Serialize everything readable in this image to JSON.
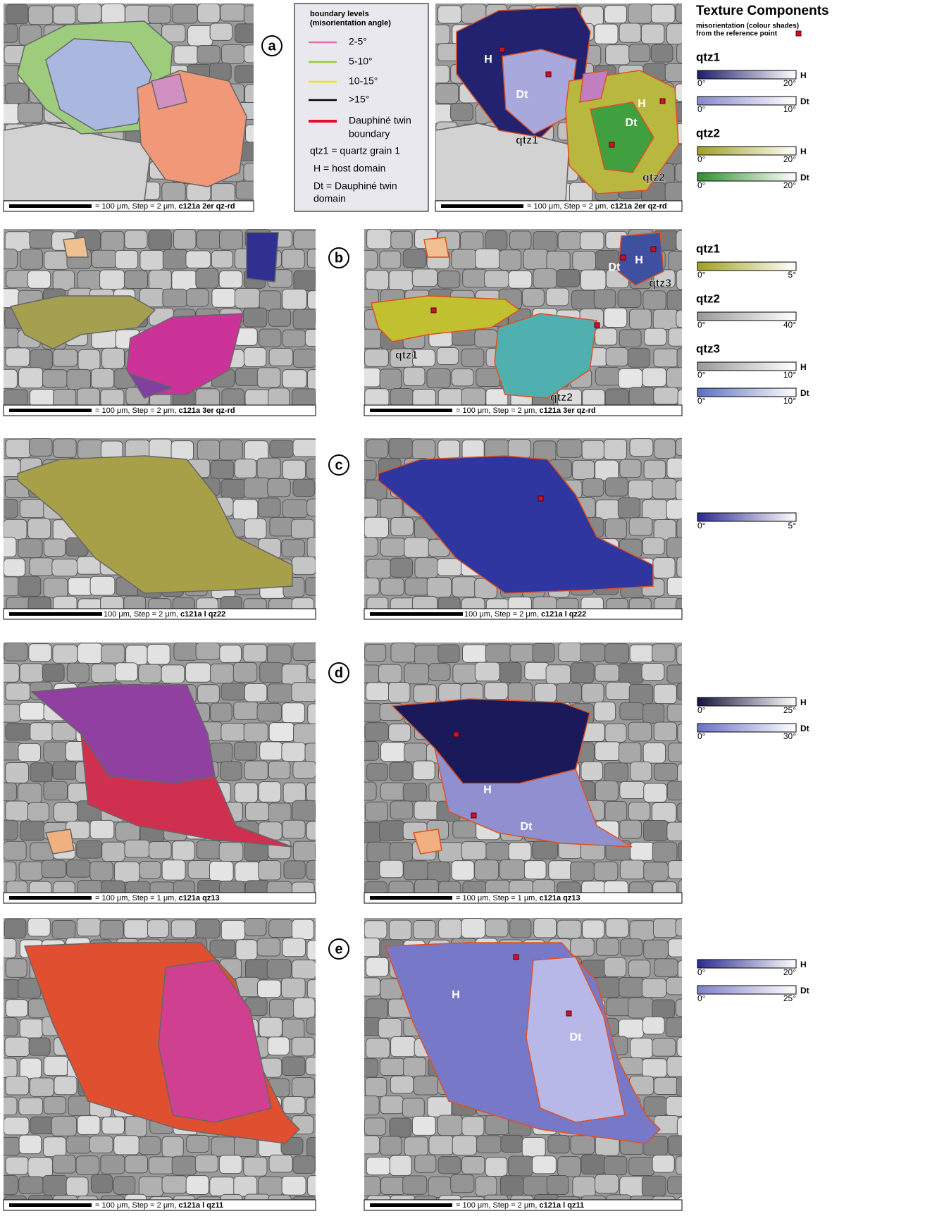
{
  "legend": {
    "title": [
      "boundary levels",
      "(misorientation angle)"
    ],
    "items": [
      {
        "label": [
          "2-5°"
        ],
        "color": "#e070b0"
      },
      {
        "label": [
          "5-10°"
        ],
        "color": "#99cc33"
      },
      {
        "label": [
          "10-15°"
        ],
        "color": "#f0e020"
      },
      {
        "label": [
          ">15°"
        ],
        "color": "#000000"
      },
      {
        "label": [
          "Dauphiné twin",
          "boundary"
        ],
        "color": "#e0102a"
      }
    ],
    "definitions": [
      [
        "qtz1 = quartz grain 1"
      ],
      [
        "H  = host domain"
      ],
      [
        "Dt = Dauphiné twin",
        "domain"
      ]
    ]
  },
  "texture": {
    "title": "Texture Components",
    "subtitle": [
      "misorientation (colour shades)",
      "from the reference point"
    ]
  },
  "rows": [
    {
      "letter": "a",
      "left_caption": {
        "text": "= 100 μm, Step = 2 μm, ",
        "sample": "c121a 2er qz-rd"
      },
      "right_caption": {
        "text": "= 100 μm, Step = 2 μm, ",
        "sample": "c121a 2er qz-rd"
      },
      "labels": [
        "H",
        "Dt",
        "qtz1",
        "H",
        "Dt",
        "qtz2"
      ],
      "groups": [
        {
          "name": "qtz1",
          "scales": [
            {
              "tag": "H",
              "min": "0°",
              "max": "20°",
              "color": "#1c1c6a"
            },
            {
              "tag": "Dt",
              "min": "0°",
              "max": "10°",
              "color": "#8888cc"
            }
          ]
        },
        {
          "name": "qtz2",
          "scales": [
            {
              "tag": "H",
              "min": "0°",
              "max": "20°",
              "color": "#a0a020"
            },
            {
              "tag": "Dt",
              "min": "0°",
              "max": "20°",
              "color": "#309030"
            }
          ]
        }
      ]
    },
    {
      "letter": "b",
      "left_caption": {
        "text": "= 100 μm, Step = 2 μm, ",
        "sample": "c121a 3er qz-rd"
      },
      "right_caption": {
        "text": "= 100 μm, Step = 2 μm, ",
        "sample": "c121a 3er qz-rd"
      },
      "labels": [
        "Dt",
        "H",
        "qtz3",
        "qtz1",
        "qtz2"
      ],
      "groups": [
        {
          "name": "qtz1",
          "scales": [
            {
              "min": "0°",
              "max": "5°",
              "color": "#a0a020"
            }
          ]
        },
        {
          "name": "qtz2",
          "scales": [
            {
              "min": "0°",
              "max": "40°",
              "color": "#999999"
            }
          ]
        },
        {
          "name": "qtz3",
          "scales": [
            {
              "tag": "H",
              "min": "0°",
              "max": "10°",
              "color": "#999999"
            },
            {
              "tag": "Dt",
              "min": "0°",
              "max": "10°",
              "color": "#5a70c0"
            }
          ]
        }
      ]
    },
    {
      "letter": "c",
      "left_caption": {
        "text": "100 μm, Step = 2 μm, ",
        "sample": "c121a l qz22"
      },
      "right_caption": {
        "text": "100 μm, Step = 2 μm, ",
        "sample": "c121a l qz22"
      },
      "labels": [],
      "groups": [
        {
          "scales": [
            {
              "min": "0°",
              "max": "5°",
              "color": "#2a2a90"
            }
          ]
        }
      ]
    },
    {
      "letter": "d",
      "left_caption": {
        "text": "= 100 μm, Step = 1 μm, ",
        "sample": "c121a qz13"
      },
      "right_caption": {
        "text": "= 100 μm, Step = 1 μm, ",
        "sample": "c121a qz13"
      },
      "labels": [
        "H",
        "Dt"
      ],
      "groups": [
        {
          "scales": [
            {
              "tag": "H",
              "min": "0°",
              "max": "25°",
              "color": "#14143c"
            },
            {
              "tag": "Dt",
              "min": "0°",
              "max": "30°",
              "color": "#6a70c8"
            }
          ]
        }
      ]
    },
    {
      "letter": "e",
      "left_caption": {
        "text": "= 100 μm, Step = 2 μm, ",
        "sample": "c121a l qz11"
      },
      "right_caption": {
        "text": "= 100 μm, Step = 2 μm, ",
        "sample": "c121a l qz11"
      },
      "labels": [
        "H",
        "Dt"
      ],
      "groups": [
        {
          "scales": [
            {
              "tag": "H",
              "min": "0°",
              "max": "20°",
              "color": "#2a2a90"
            },
            {
              "tag": "Dt",
              "min": "0°",
              "max": "25°",
              "color": "#8080cc"
            }
          ]
        }
      ]
    }
  ]
}
